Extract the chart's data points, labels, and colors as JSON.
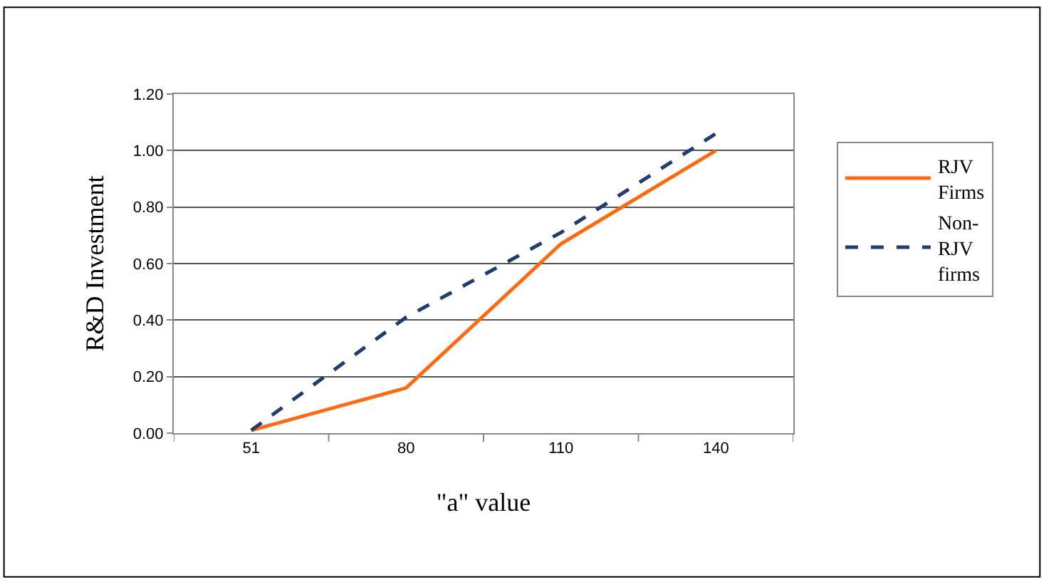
{
  "chart_data": {
    "type": "line",
    "xlabel": "\"a\" value",
    "ylabel": "R&D Investment",
    "categories": [
      "51",
      "80",
      "110",
      "140"
    ],
    "series": [
      {
        "name": "RJV Firms",
        "color": "#ff6a10",
        "line_style": "solid",
        "values": [
          0.01,
          0.16,
          0.67,
          1.0
        ]
      },
      {
        "name": "Non-RJV firms",
        "color": "#1f3d6e",
        "line_style": "dashed",
        "values": [
          0.01,
          0.41,
          0.71,
          1.06
        ]
      }
    ],
    "ylim": [
      0,
      1.2
    ],
    "yticks": [
      {
        "value": 0,
        "label": "0.00"
      },
      {
        "value": 0.2,
        "label": "0.20"
      },
      {
        "value": 0.4,
        "label": "0.40"
      },
      {
        "value": 0.6,
        "label": "0.60"
      },
      {
        "value": 0.8,
        "label": "0.80"
      },
      {
        "value": 1.0,
        "label": "1.00"
      },
      {
        "value": 1.2,
        "label": "1.20"
      }
    ],
    "grid": "y",
    "legend": "right",
    "marker": "none"
  }
}
